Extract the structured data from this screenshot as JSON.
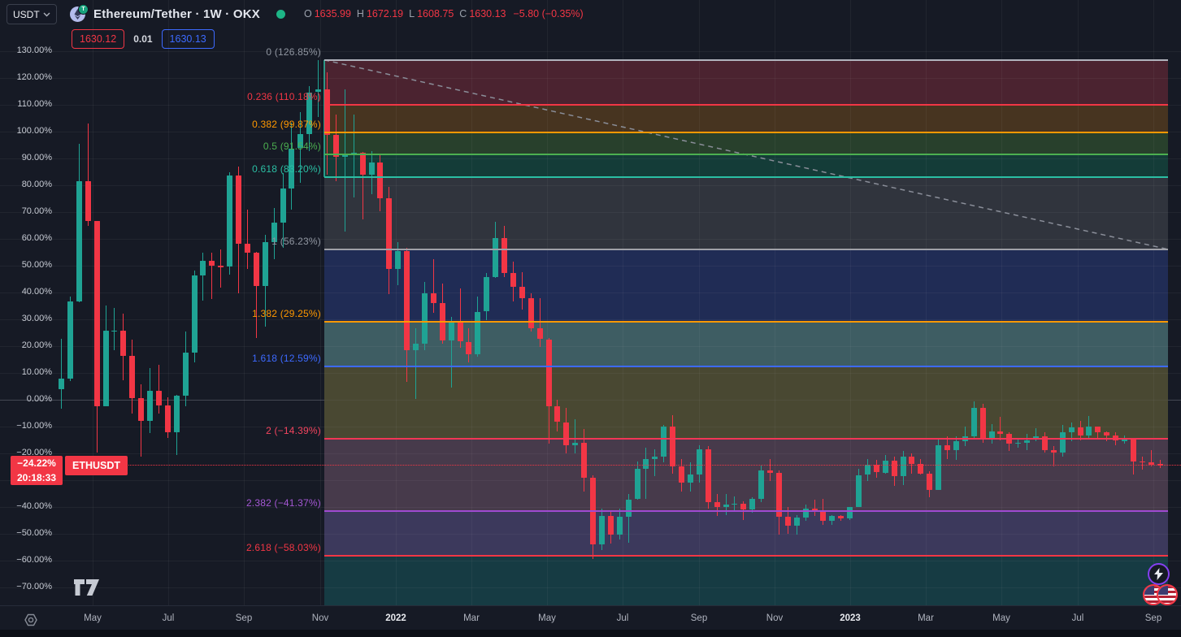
{
  "header": {
    "quote_selector": "USDT",
    "title": "Ethereum/Tether · 1W · OKX",
    "ohlc": [
      {
        "key": "O",
        "val": "1635.99"
      },
      {
        "key": "H",
        "val": "1672.19"
      },
      {
        "key": "L",
        "val": "1608.75"
      },
      {
        "key": "C",
        "val": "1630.13"
      }
    ],
    "change": "−5.80 (−0.35%)",
    "bid": "1630.12",
    "spread": "0.01",
    "ask": "1630.13"
  },
  "price_line": {
    "change_pct": "−24.22%",
    "countdown": "20:18:33",
    "symbol_badge": "ETHUSDT"
  },
  "price_scale": {
    "ticks": [
      "130.00%",
      "120.00%",
      "110.00%",
      "100.00%",
      "90.00%",
      "80.00%",
      "70.00%",
      "60.00%",
      "50.00%",
      "40.00%",
      "30.00%",
      "20.00%",
      "10.00%",
      "0.00%",
      "−10.00%",
      "−20.00%",
      "−30.00%",
      "−40.00%",
      "−50.00%",
      "−60.00%",
      "−70.00%"
    ],
    "tick_values": [
      130,
      120,
      110,
      100,
      90,
      80,
      70,
      60,
      50,
      40,
      30,
      20,
      10,
      0,
      -10,
      -20,
      -30,
      -40,
      -50,
      -60,
      -70
    ]
  },
  "time_scale": {
    "labels": [
      "May",
      "Jul",
      "Sep",
      "Nov",
      "2022",
      "Mar",
      "May",
      "Jul",
      "Sep",
      "Nov",
      "2023",
      "Mar",
      "May",
      "Jul",
      "Sep"
    ],
    "year_indices": [
      4,
      10
    ]
  },
  "fibonacci": {
    "levels": [
      {
        "label": "0 (126.85%)",
        "pct": 126.85,
        "color": "#b0b3bc",
        "label_color": "#9096a1"
      },
      {
        "label": "0.236 (110.18%)",
        "pct": 110.18,
        "color": "#f23645",
        "label_color": "#f23645"
      },
      {
        "label": "0.382 (99.87%)",
        "pct": 99.87,
        "color": "#ff9800",
        "label_color": "#ff9800"
      },
      {
        "label": "0.5 (91.54%)",
        "pct": 91.54,
        "color": "#4caf50",
        "label_color": "#4caf50"
      },
      {
        "label": "0.618 (83.20%)",
        "pct": 83.2,
        "color": "#2bbfa4",
        "label_color": "#2bbfa4"
      },
      {
        "label": "1 (56.23%)",
        "pct": 56.23,
        "color": "#9fa0a8",
        "label_color": "#9096a1"
      },
      {
        "label": "1.382 (29.25%)",
        "pct": 29.25,
        "color": "#ff9800",
        "label_color": "#ff9800"
      },
      {
        "label": "1.618 (12.59%)",
        "pct": 12.59,
        "color": "#3d6aff",
        "label_color": "#3d6aff"
      },
      {
        "label": "2 (−14.39%)",
        "pct": -14.39,
        "color": "#f23655",
        "label_color": "#f4445e"
      },
      {
        "label": "2.382 (−41.37%)",
        "pct": -41.37,
        "color": "#a04bd1",
        "label_color": "#a558d4"
      },
      {
        "label": "2.618 (−58.03%)",
        "pct": -58.03,
        "color": "#f23645",
        "label_color": "#f23645"
      }
    ],
    "bands": [
      {
        "from": 126.85,
        "to": 110.18,
        "fill": "#4b2330"
      },
      {
        "from": 110.18,
        "to": 99.87,
        "fill": "#473420"
      },
      {
        "from": 99.87,
        "to": 91.54,
        "fill": "#28402c"
      },
      {
        "from": 91.54,
        "to": 83.2,
        "fill": "#143c38"
      },
      {
        "from": 83.2,
        "to": 56.23,
        "fill": "#30343d"
      },
      {
        "from": 56.23,
        "to": 29.25,
        "fill": "#202c55"
      },
      {
        "from": 29.25,
        "to": 12.59,
        "fill": "#3e5d63"
      },
      {
        "from": 12.59,
        "to": -14.39,
        "fill": "#494832"
      },
      {
        "from": -14.39,
        "to": -41.37,
        "fill": "#473a4b"
      },
      {
        "from": -41.37,
        "to": -58.03,
        "fill": "#3c395c"
      },
      {
        "from": -58.03,
        "to": -76.6,
        "fill": "#163b43"
      }
    ],
    "trend_line": {
      "x1_pct": 126.85,
      "x2_pct": 56.23
    }
  },
  "colors": {
    "up": "#1fa394",
    "down": "#f23645",
    "background": "#161a25",
    "accent_red": "#f23645",
    "accent_blue": "#3d6aff"
  },
  "chart_data": {
    "type": "candlestick",
    "title": "Ethereum/Tether 1W OKX",
    "symbol": "ETHUSDT",
    "timeframe": "1W",
    "unit": "percent_change_scale",
    "y_axis": {
      "min": -70,
      "max": 130,
      "tick_step": 10,
      "format": "percent"
    },
    "x_axis_labels": [
      "May",
      "Jul",
      "Sep",
      "Nov",
      "2022",
      "Mar",
      "May",
      "Jul",
      "Sep",
      "Nov",
      "2023",
      "Mar",
      "May",
      "Jul",
      "Sep"
    ],
    "current_value_pct": -24.22,
    "candles_ohlc_pct": [
      [
        4.0,
        22.9,
        -3.3,
        7.9
      ],
      [
        7.9,
        38.7,
        7.2,
        36.9
      ],
      [
        36.9,
        95.6,
        36.5,
        81.8
      ],
      [
        81.8,
        103.3,
        64.9,
        66.7
      ],
      [
        66.7,
        66.8,
        -19.7,
        -2.3
      ],
      [
        -2.3,
        35.3,
        -2.3,
        25.8
      ],
      [
        25.8,
        34.4,
        18.6,
        25.9
      ],
      [
        25.9,
        32.3,
        7.4,
        16.6
      ],
      [
        16.6,
        22.6,
        -5.2,
        0.6
      ],
      [
        0.6,
        6.0,
        -21.0,
        -7.8
      ],
      [
        -7.8,
        12.0,
        -12.4,
        3.5
      ],
      [
        3.5,
        13.2,
        -5.0,
        -1.9
      ],
      [
        -1.9,
        1.0,
        -14.0,
        -11.9
      ],
      [
        -11.9,
        2.0,
        -20.5,
        1.8
      ],
      [
        1.8,
        25.5,
        -2.4,
        17.7
      ],
      [
        17.7,
        48.4,
        14.0,
        46.4
      ],
      [
        46.4,
        55.0,
        37.1,
        51.9
      ],
      [
        51.9,
        55.1,
        37.7,
        50.0
      ],
      [
        50.0,
        56.2,
        42.0,
        49.9
      ],
      [
        49.9,
        85.1,
        46.7,
        83.7
      ],
      [
        83.7,
        87.2,
        39.7,
        58.4
      ],
      [
        58.4,
        70.9,
        48.9,
        55.0
      ],
      [
        55.0,
        55.4,
        23.2,
        42.5
      ],
      [
        42.5,
        61.8,
        27.5,
        58.9
      ],
      [
        58.9,
        71.5,
        52.4,
        66.1
      ],
      [
        66.1,
        84.7,
        56.7,
        78.8
      ],
      [
        78.8,
        103.4,
        70.9,
        93.9
      ],
      [
        93.9,
        107.3,
        81.1,
        99.3
      ],
      [
        99.3,
        117.1,
        92.9,
        114.8
      ],
      [
        114.8,
        126.85,
        105.5,
        115.9
      ],
      [
        115.9,
        122.2,
        84.1,
        98.8
      ],
      [
        98.8,
        106.6,
        81.5,
        90.7
      ],
      [
        90.7,
        116.0,
        62.7,
        91.5
      ],
      [
        91.5,
        106.4,
        75.7,
        92.2
      ],
      [
        92.2,
        92.5,
        67.4,
        84.1
      ],
      [
        84.1,
        92.9,
        76.7,
        88.7
      ],
      [
        88.7,
        91.8,
        70.6,
        75.3
      ],
      [
        75.3,
        79.5,
        39.5,
        48.8
      ],
      [
        48.8,
        59.0,
        42.7,
        55.7
      ],
      [
        55.7,
        56.7,
        6.9,
        18.5
      ],
      [
        18.5,
        26.9,
        0.4,
        20.9
      ],
      [
        20.9,
        44.1,
        18.5,
        39.9
      ],
      [
        39.9,
        52.5,
        32.5,
        36.2
      ],
      [
        36.2,
        43.4,
        20.9,
        22.3
      ],
      [
        22.3,
        31.1,
        4.6,
        29.2
      ],
      [
        29.2,
        41.8,
        19.5,
        21.8
      ],
      [
        21.8,
        26.9,
        13.9,
        17.2
      ],
      [
        17.2,
        38.5,
        16.2,
        33.0
      ],
      [
        33.0,
        47.4,
        29.7,
        46.0
      ],
      [
        46.0,
        66.4,
        45.5,
        60.4
      ],
      [
        60.4,
        65.0,
        46.0,
        47.4
      ],
      [
        47.4,
        51.6,
        36.7,
        42.3
      ],
      [
        42.3,
        47.8,
        33.9,
        38.1
      ],
      [
        38.1,
        39.9,
        25.5,
        26.9
      ],
      [
        26.9,
        38.1,
        19.9,
        22.7
      ],
      [
        22.7,
        23.2,
        -16.3,
        -2.4
      ],
      [
        -2.4,
        0.0,
        -11.7,
        -8.2
      ],
      [
        -8.2,
        -2.8,
        -20.0,
        -16.8
      ],
      [
        -16.8,
        -7.0,
        -20.0,
        -15.9
      ],
      [
        -15.9,
        -10.7,
        -34.0,
        -28.9
      ],
      [
        -28.9,
        -27.9,
        -59.1,
        -53.7
      ],
      [
        -53.7,
        -40.5,
        -55.8,
        -43.1
      ],
      [
        -43.1,
        -41.4,
        -53.5,
        -50.3
      ],
      [
        -50.3,
        -40.5,
        -52.1,
        -43.5
      ],
      [
        -43.5,
        -34.9,
        -53.2,
        -37.0
      ],
      [
        -37.0,
        -22.8,
        -37.2,
        -25.6
      ],
      [
        -25.6,
        -17.7,
        -36.8,
        -21.9
      ],
      [
        -21.9,
        -18.2,
        -28.4,
        -21.0
      ],
      [
        -21.0,
        -9.3,
        -23.3,
        -10.0
      ],
      [
        -10.0,
        -5.6,
        -27.5,
        -24.7
      ],
      [
        -24.7,
        -21.9,
        -34.0,
        -30.7
      ],
      [
        -30.7,
        -23.3,
        -34.0,
        -27.7
      ],
      [
        -27.7,
        -16.8,
        -30.7,
        -18.2
      ],
      [
        -18.2,
        -17.2,
        -40.5,
        -37.9
      ],
      [
        -37.9,
        -34.9,
        -43.3,
        -40.0
      ],
      [
        -40.0,
        -34.9,
        -42.8,
        -39.1
      ],
      [
        -39.1,
        -35.8,
        -41.0,
        -38.6
      ],
      [
        -38.6,
        -37.7,
        -44.7,
        -40.7
      ],
      [
        -40.7,
        -36.3,
        -41.9,
        -36.8
      ],
      [
        -36.8,
        -24.5,
        -38.2,
        -26.1
      ],
      [
        -26.1,
        -21.9,
        -30.3,
        -27.0
      ],
      [
        -27.0,
        -26.1,
        -50.3,
        -43.5
      ],
      [
        -43.5,
        -40.0,
        -50.0,
        -47.0
      ],
      [
        -47.0,
        -42.8,
        -50.3,
        -43.7
      ],
      [
        -43.7,
        -39.1,
        -45.1,
        -40.5
      ],
      [
        -40.5,
        -37.2,
        -43.3,
        -41.2
      ],
      [
        -41.2,
        -36.8,
        -46.5,
        -44.9
      ],
      [
        -44.9,
        -42.8,
        -46.5,
        -43.3
      ],
      [
        -43.3,
        -42.8,
        -45.1,
        -44.2
      ],
      [
        -44.2,
        -40.0,
        -44.7,
        -40.0
      ],
      [
        -40.0,
        -25.6,
        -40.0,
        -27.9
      ],
      [
        -27.9,
        -21.9,
        -30.3,
        -24.2
      ],
      [
        -24.2,
        -22.4,
        -28.9,
        -27.0
      ],
      [
        -27.0,
        -20.5,
        -27.5,
        -22.6
      ],
      [
        -22.6,
        -21.0,
        -32.1,
        -28.4
      ],
      [
        -28.4,
        -19.1,
        -31.7,
        -21.0
      ],
      [
        -21.0,
        -20.0,
        -27.5,
        -23.8
      ],
      [
        -23.8,
        -21.9,
        -27.9,
        -27.5
      ],
      [
        -27.5,
        -26.5,
        -36.3,
        -33.5
      ],
      [
        -33.5,
        -14.5,
        -33.5,
        -16.8
      ],
      [
        -16.8,
        -13.5,
        -21.9,
        -18.6
      ],
      [
        -18.6,
        -13.5,
        -22.4,
        -15.4
      ],
      [
        -15.4,
        -9.8,
        -17.2,
        -13.5
      ],
      [
        -13.5,
        -0.5,
        -14.0,
        -2.8
      ],
      [
        -2.8,
        -1.4,
        -15.9,
        -14.5
      ],
      [
        -14.5,
        -8.9,
        -16.3,
        -11.7
      ],
      [
        -11.7,
        -6.1,
        -14.9,
        -12.6
      ],
      [
        -12.6,
        -12.1,
        -19.1,
        -16.3
      ],
      [
        -16.3,
        -14.0,
        -17.7,
        -15.9
      ],
      [
        -15.9,
        -12.6,
        -18.6,
        -14.9
      ],
      [
        -14.9,
        -10.5,
        -15.4,
        -13.5
      ],
      [
        -13.5,
        -12.1,
        -19.6,
        -18.6
      ],
      [
        -18.6,
        -17.2,
        -24.7,
        -19.6
      ],
      [
        -19.6,
        -9.3,
        -21.0,
        -12.1
      ],
      [
        -12.1,
        -8.2,
        -15.4,
        -10.3
      ],
      [
        -10.3,
        -7.7,
        -14.9,
        -13.3
      ],
      [
        -13.3,
        -5.9,
        -14.0,
        -10.0
      ],
      [
        -10.0,
        -9.8,
        -14.2,
        -12.1
      ],
      [
        -12.1,
        -11.7,
        -15.2,
        -13.1
      ],
      [
        -13.1,
        -12.1,
        -16.8,
        -15.2
      ],
      [
        -15.2,
        -13.1,
        -16.3,
        -14.5
      ],
      [
        -14.5,
        -14.0,
        -27.9,
        -22.8
      ],
      [
        -22.8,
        -21.0,
        -26.1,
        -23.3
      ],
      [
        -23.3,
        -18.6,
        -24.7,
        -24.2
      ],
      [
        -23.9,
        -22.3,
        -25.2,
        -24.2
      ]
    ]
  }
}
